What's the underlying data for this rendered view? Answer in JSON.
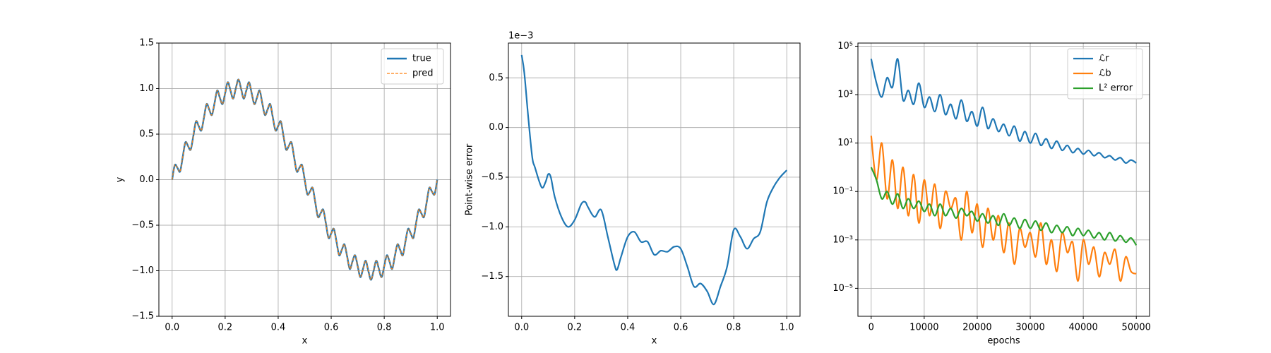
{
  "chart_data": [
    {
      "type": "line",
      "xlabel": "x",
      "ylabel": "y",
      "x": [
        0,
        0.01,
        0.02,
        0.03,
        0.04,
        0.05,
        0.06,
        0.07,
        0.08,
        0.09,
        0.1,
        0.11,
        0.12,
        0.13,
        0.14,
        0.15,
        0.16,
        0.17,
        0.18,
        0.19,
        0.2,
        0.21,
        0.22,
        0.23,
        0.24,
        0.25,
        0.26,
        0.27,
        0.28,
        0.29,
        0.3,
        0.31,
        0.32,
        0.33,
        0.34,
        0.35,
        0.36,
        0.37,
        0.38,
        0.39,
        0.4,
        0.41,
        0.42,
        0.43,
        0.44,
        0.45,
        0.46,
        0.47,
        0.48,
        0.49,
        0.5,
        0.51,
        0.52,
        0.53,
        0.54,
        0.55,
        0.56,
        0.57,
        0.58,
        0.59,
        0.6,
        0.61,
        0.62,
        0.63,
        0.64,
        0.65,
        0.66,
        0.67,
        0.68,
        0.69,
        0.7,
        0.71,
        0.72,
        0.73,
        0.74,
        0.75,
        0.76,
        0.77,
        0.78,
        0.79,
        0.8,
        0.81,
        0.82,
        0.83,
        0.84,
        0.85,
        0.86,
        0.87,
        0.88,
        0.89,
        0.9,
        0.91,
        0.92,
        0.93,
        0.94,
        0.95,
        0.96,
        0.97,
        0.98,
        0.99,
        1
      ],
      "series": [
        {
          "name": "true",
          "color": "#1f77b4",
          "linestyle": "solid",
          "values": [
            0,
            0.16,
            0.13,
            0.09,
            0.25,
            0.41,
            0.37,
            0.33,
            0.48,
            0.64,
            0.59,
            0.54,
            0.68,
            0.83,
            0.77,
            0.71,
            0.84,
            0.98,
            0.9,
            0.83,
            0.95,
            1.07,
            0.98,
            0.89,
            1,
            1.1,
            1,
            0.89,
            0.98,
            1.07,
            0.95,
            0.83,
            0.9,
            0.98,
            0.84,
            0.71,
            0.77,
            0.83,
            0.68,
            0.54,
            0.59,
            0.64,
            0.48,
            0.33,
            0.37,
            0.41,
            0.25,
            0.09,
            0.13,
            0.16,
            0,
            -0.16,
            -0.13,
            -0.09,
            -0.25,
            -0.41,
            -0.37,
            -0.33,
            -0.48,
            -0.64,
            -0.59,
            -0.54,
            -0.68,
            -0.83,
            -0.77,
            -0.71,
            -0.84,
            -0.98,
            -0.9,
            -0.83,
            -0.95,
            -1.07,
            -0.98,
            -0.89,
            -1,
            -1.1,
            -1,
            -0.89,
            -0.98,
            -1.07,
            -0.95,
            -0.83,
            -0.9,
            -0.98,
            -0.84,
            -0.71,
            -0.77,
            -0.83,
            -0.68,
            -0.54,
            -0.59,
            -0.64,
            -0.48,
            -0.33,
            -0.37,
            -0.41,
            -0.25,
            -0.09,
            -0.13,
            -0.16,
            0
          ]
        },
        {
          "name": "pred",
          "color": "#ff7f0e",
          "linestyle": "dashed",
          "values": [
            0,
            0.16,
            0.13,
            0.09,
            0.25,
            0.41,
            0.37,
            0.33,
            0.48,
            0.64,
            0.59,
            0.54,
            0.68,
            0.83,
            0.77,
            0.71,
            0.84,
            0.98,
            0.9,
            0.83,
            0.95,
            1.07,
            0.98,
            0.89,
            1,
            1.1,
            1,
            0.89,
            0.98,
            1.07,
            0.95,
            0.83,
            0.9,
            0.98,
            0.84,
            0.71,
            0.77,
            0.83,
            0.68,
            0.54,
            0.59,
            0.64,
            0.48,
            0.33,
            0.37,
            0.41,
            0.25,
            0.09,
            0.13,
            0.16,
            0,
            -0.16,
            -0.13,
            -0.09,
            -0.25,
            -0.41,
            -0.37,
            -0.33,
            -0.48,
            -0.64,
            -0.59,
            -0.54,
            -0.68,
            -0.83,
            -0.77,
            -0.71,
            -0.84,
            -0.98,
            -0.9,
            -0.83,
            -0.95,
            -1.07,
            -0.98,
            -0.89,
            -1,
            -1.1,
            -1,
            -0.89,
            -0.98,
            -1.07,
            -0.95,
            -0.83,
            -0.9,
            -0.98,
            -0.84,
            -0.71,
            -0.77,
            -0.83,
            -0.68,
            -0.54,
            -0.59,
            -0.64,
            -0.48,
            -0.33,
            -0.37,
            -0.41,
            -0.25,
            -0.09,
            -0.13,
            -0.16,
            0
          ]
        }
      ],
      "xlim": [
        -0.05,
        1.05
      ],
      "xticks": [
        {
          "value": 0,
          "label": "0.0"
        },
        0.2,
        0.4,
        0.6,
        0.8,
        {
          "value": 1,
          "label": "1.0"
        }
      ],
      "ylim": [
        -1.5,
        1.5
      ],
      "yticks": [
        {
          "value": -1.5,
          "label": "−1.5"
        },
        {
          "value": -1,
          "label": "−1.0"
        },
        {
          "value": -0.5,
          "label": "−0.5"
        },
        {
          "value": 0,
          "label": "0.0"
        },
        0.5,
        {
          "value": 1,
          "label": "1.0"
        },
        1.5
      ],
      "grid": true,
      "legend": "upper right"
    },
    {
      "type": "line",
      "xlabel": "x",
      "ylabel": "Point-wise error",
      "offset_label": "1e−3",
      "color": "#1f77b4",
      "x": [
        0,
        0.01,
        0.025,
        0.04,
        0.05,
        0.075,
        0.09,
        0.1,
        0.11,
        0.125,
        0.15,
        0.175,
        0.2,
        0.225,
        0.24,
        0.25,
        0.275,
        0.3,
        0.325,
        0.35,
        0.36,
        0.375,
        0.4,
        0.425,
        0.45,
        0.475,
        0.5,
        0.525,
        0.55,
        0.575,
        0.6,
        0.625,
        0.65,
        0.675,
        0.7,
        0.725,
        0.75,
        0.775,
        0.8,
        0.825,
        0.85,
        0.875,
        0.9,
        0.925,
        0.95,
        0.975,
        1
      ],
      "values": [
        0.73,
        0.55,
        0.1,
        -0.3,
        -0.4,
        -0.6,
        -0.55,
        -0.47,
        -0.5,
        -0.7,
        -0.9,
        -1.0,
        -0.93,
        -0.77,
        -0.75,
        -0.8,
        -0.9,
        -0.83,
        -1.1,
        -1.38,
        -1.43,
        -1.3,
        -1.1,
        -1.05,
        -1.15,
        -1.15,
        -1.28,
        -1.24,
        -1.25,
        -1.2,
        -1.22,
        -1.4,
        -1.6,
        -1.57,
        -1.65,
        -1.78,
        -1.6,
        -1.4,
        -1.03,
        -1.1,
        -1.22,
        -1.12,
        -1.05,
        -0.75,
        -0.6,
        -0.5,
        -0.43
      ],
      "xlim": [
        -0.05,
        1.05
      ],
      "xticks": [
        {
          "value": 0,
          "label": "0.0"
        },
        0.2,
        0.4,
        0.6,
        0.8,
        {
          "value": 1,
          "label": "1.0"
        }
      ],
      "ylim": [
        -1.9,
        0.85
      ],
      "yticks": [
        {
          "value": -1.5,
          "label": "−1.5"
        },
        {
          "value": -1,
          "label": "−1.0"
        },
        {
          "value": -0.5,
          "label": "−0.5"
        },
        {
          "value": 0,
          "label": "0.0"
        },
        0.5
      ],
      "grid": true
    },
    {
      "type": "line",
      "xlabel": "epochs",
      "yscale": "log",
      "x": [
        0,
        1000,
        2000,
        3000,
        4000,
        5000,
        6000,
        7000,
        8000,
        9000,
        10000,
        11000,
        12000,
        13000,
        14000,
        15000,
        16000,
        17000,
        18000,
        19000,
        20000,
        21000,
        22000,
        23000,
        24000,
        25000,
        26000,
        27000,
        28000,
        29000,
        30000,
        31000,
        32000,
        33000,
        34000,
        35000,
        36000,
        37000,
        38000,
        39000,
        40000,
        41000,
        42000,
        43000,
        44000,
        45000,
        46000,
        47000,
        48000,
        49000,
        50000
      ],
      "series": [
        {
          "name": "ℒr",
          "color": "#1f77b4",
          "values": [
            30000,
            3000,
            800,
            5000,
            2000,
            30000,
            600,
            1500,
            400,
            3000,
            300,
            800,
            200,
            1000,
            150,
            400,
            100,
            600,
            80,
            200,
            50,
            300,
            40,
            100,
            30,
            60,
            20,
            50,
            12,
            30,
            10,
            25,
            8,
            15,
            6,
            12,
            5,
            8,
            4,
            6,
            3.5,
            5,
            3,
            4,
            2.5,
            3,
            2,
            2.5,
            1.5,
            2,
            1.5
          ]
        },
        {
          "name": "ℒb",
          "color": "#ff7f0e",
          "values": [
            20,
            0.3,
            10,
            0.05,
            2,
            0.02,
            1,
            0.01,
            0.5,
            0.005,
            0.3,
            0.01,
            0.2,
            0.003,
            0.1,
            0.02,
            0.05,
            0.001,
            0.1,
            0.002,
            0.03,
            0.0005,
            0.02,
            0.001,
            0.01,
            0.0003,
            0.005,
            0.0001,
            0.003,
            0.0005,
            0.002,
            0.0002,
            0.005,
            0.0001,
            0.001,
            5e-05,
            0.002,
            0.0003,
            0.0008,
            2e-05,
            0.001,
            0.0001,
            0.0005,
            3e-05,
            0.0003,
            0.0001,
            0.0004,
            2e-05,
            0.0002,
            5e-05,
            4e-05
          ]
        },
        {
          "name": "L² error",
          "color": "#2ca02c",
          "values": [
            1,
            0.3,
            0.05,
            0.1,
            0.03,
            0.08,
            0.02,
            0.05,
            0.02,
            0.04,
            0.015,
            0.03,
            0.01,
            0.03,
            0.01,
            0.02,
            0.008,
            0.02,
            0.01,
            0.015,
            0.006,
            0.012,
            0.005,
            0.01,
            0.004,
            0.012,
            0.004,
            0.008,
            0.003,
            0.007,
            0.003,
            0.006,
            0.0025,
            0.005,
            0.002,
            0.004,
            0.002,
            0.0035,
            0.0015,
            0.003,
            0.0015,
            0.0025,
            0.0012,
            0.002,
            0.001,
            0.002,
            0.0009,
            0.0015,
            0.0008,
            0.0012,
            0.0006
          ]
        }
      ],
      "xlim": [
        -2500,
        52500
      ],
      "xticks": [
        0,
        10000,
        20000,
        30000,
        40000,
        50000
      ],
      "ylim": [
        7e-07,
        135000
      ],
      "yticks": [
        {
          "value": 1e-05,
          "label": "10⁻⁵"
        },
        {
          "value": 0.001,
          "label": "10⁻³"
        },
        {
          "value": 0.1,
          "label": "10⁻¹"
        },
        {
          "value": 10,
          "label": "10¹"
        },
        {
          "value": 1000,
          "label": "10³"
        },
        {
          "value": 100000,
          "label": "10⁵"
        }
      ],
      "grid": true,
      "legend": "upper right"
    }
  ]
}
